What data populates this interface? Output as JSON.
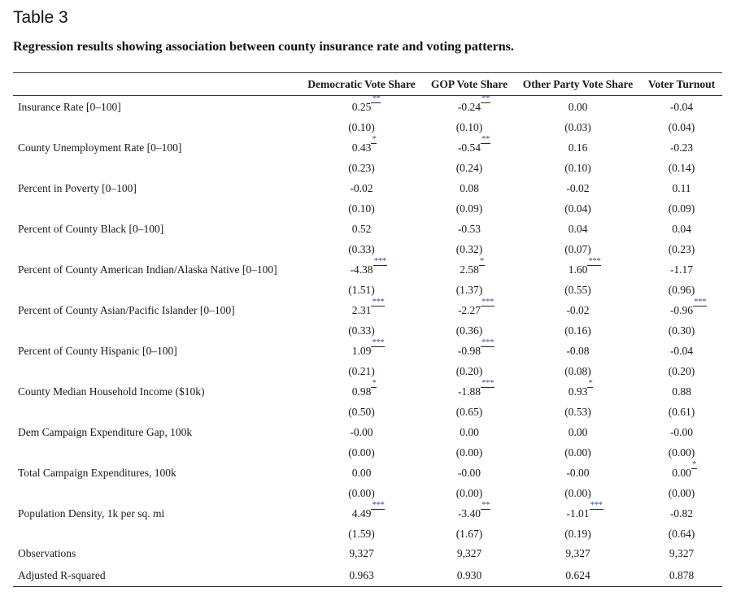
{
  "table_label": "Table 3",
  "caption": "Regression results showing association between county insurance rate and voting patterns.",
  "columns": [
    "",
    "Democratic Vote Share",
    "GOP Vote Share",
    "Other Party Vote Share",
    "Voter Turnout"
  ],
  "rows": [
    {
      "label": "Insurance Rate [0–100]",
      "coef": [
        "0.25",
        "-0.24",
        "0.00",
        "-0.04"
      ],
      "stars": [
        "**",
        "**",
        "",
        ""
      ],
      "se": [
        "(0.10)",
        "(0.10)",
        "(0.03)",
        "(0.04)"
      ]
    },
    {
      "label": "County Unemployment Rate [0–100]",
      "coef": [
        "0.43",
        "-0.54",
        "0.16",
        "-0.23"
      ],
      "stars": [
        "*",
        "**",
        "",
        ""
      ],
      "se": [
        "(0.23)",
        "(0.24)",
        "(0.10)",
        "(0.14)"
      ]
    },
    {
      "label": "Percent in Poverty [0–100]",
      "coef": [
        "-0.02",
        "0.08",
        "-0.02",
        "0.11"
      ],
      "stars": [
        "",
        "",
        "",
        ""
      ],
      "se": [
        "(0.10)",
        "(0.09)",
        "(0.04)",
        "(0.09)"
      ]
    },
    {
      "label": "Percent of County Black [0–100]",
      "coef": [
        "0.52",
        "-0.53",
        "0.04",
        "0.04"
      ],
      "stars": [
        "",
        "",
        "",
        ""
      ],
      "se": [
        "(0.33)",
        "(0.32)",
        "(0.07)",
        "(0.23)"
      ]
    },
    {
      "label": "Percent of County American Indian/Alaska Native [0–100]",
      "coef": [
        "-4.38",
        "2.58",
        "1.60",
        "-1.17"
      ],
      "stars": [
        "***",
        "*",
        "***",
        ""
      ],
      "se": [
        "(1.51)",
        "(1.37)",
        "(0.55)",
        "(0.96)"
      ]
    },
    {
      "label": "Percent of County Asian/Pacific Islander [0–100]",
      "coef": [
        "2.31",
        "-2.27",
        "-0.02",
        "-0.96"
      ],
      "stars": [
        "***",
        "***",
        "",
        "***"
      ],
      "se": [
        "(0.33)",
        "(0.36)",
        "(0.16)",
        "(0.30)"
      ]
    },
    {
      "label": "Percent of County Hispanic [0–100]",
      "coef": [
        "1.09",
        "-0.98",
        "-0.08",
        "-0.04"
      ],
      "stars": [
        "***",
        "***",
        "",
        ""
      ],
      "se": [
        "(0.21)",
        "(0.20)",
        "(0.08)",
        "(0.20)"
      ]
    },
    {
      "label": "County Median Household Income ($10k)",
      "coef": [
        "0.98",
        "-1.88",
        "0.93",
        "0.88"
      ],
      "stars": [
        "*",
        "***",
        "*",
        ""
      ],
      "se": [
        "(0.50)",
        "(0.65)",
        "(0.53)",
        "(0.61)"
      ]
    },
    {
      "label": "Dem Campaign Expenditure Gap, 100k",
      "coef": [
        "-0.00",
        "0.00",
        "0.00",
        "-0.00"
      ],
      "stars": [
        "",
        "",
        "",
        ""
      ],
      "se": [
        "(0.00)",
        "(0.00)",
        "(0.00)",
        "(0.00)"
      ]
    },
    {
      "label": "Total Campaign Expenditures, 100k",
      "coef": [
        "0.00",
        "-0.00",
        "-0.00",
        "0.00"
      ],
      "stars": [
        "",
        "",
        "",
        "*"
      ],
      "se": [
        "(0.00)",
        "(0.00)",
        "(0.00)",
        "(0.00)"
      ]
    },
    {
      "label": "Population Density, 1k per sq. mi",
      "coef": [
        "4.49",
        "-3.40",
        "-1.01",
        "-0.82"
      ],
      "stars": [
        "***",
        "**",
        "***",
        ""
      ],
      "se": [
        "(1.59)",
        "(1.67)",
        "(0.19)",
        "(0.64)"
      ]
    }
  ],
  "stats": [
    {
      "label": "Observations",
      "values": [
        "9,327",
        "9,327",
        "9,327",
        "9,327"
      ]
    },
    {
      "label": "Adjusted R-squared",
      "values": [
        "0.963",
        "0.930",
        "0.624",
        "0.878"
      ]
    }
  ]
}
